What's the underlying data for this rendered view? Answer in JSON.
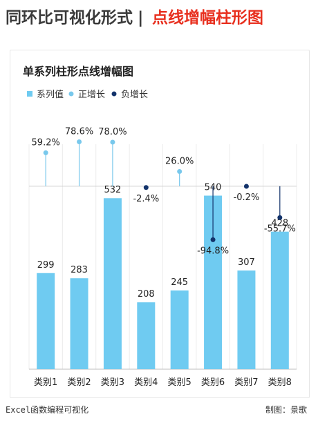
{
  "banner": {
    "title_left": "同环比可视化形式",
    "separator": "|",
    "title_right": "点线增幅柱形图"
  },
  "colors": {
    "bar": "#6fcbf1",
    "positive": "#78c8ec",
    "negative": "#13336b",
    "title_red": "#e8301f"
  },
  "chart_data": {
    "type": "bar",
    "title": "单系列柱形点线增幅图",
    "legend": [
      "系列值",
      "正增长",
      "负增长"
    ],
    "legend_position": "top-left",
    "categories": [
      "类别1",
      "类别2",
      "类别3",
      "类别4",
      "类别5",
      "类别6",
      "类别7",
      "类别8"
    ],
    "values": [
      299,
      283,
      532,
      208,
      245,
      540,
      307,
      428
    ],
    "growth": [
      59.2,
      78.6,
      78.0,
      -2.4,
      26.0,
      -94.8,
      -0.2,
      -55.7
    ],
    "growth_labels": [
      "59.2%",
      "78.6%",
      "78.0%",
      "-2.4%",
      "26.0%",
      "-94.8%",
      "-0.2%",
      "-55.7%"
    ],
    "ylim": [
      0,
      700
    ],
    "growth_ylim": [
      -120,
      100
    ],
    "grid": true
  },
  "footer": {
    "left": "Excel函数编程可视化",
    "right": "制图：景歌"
  }
}
